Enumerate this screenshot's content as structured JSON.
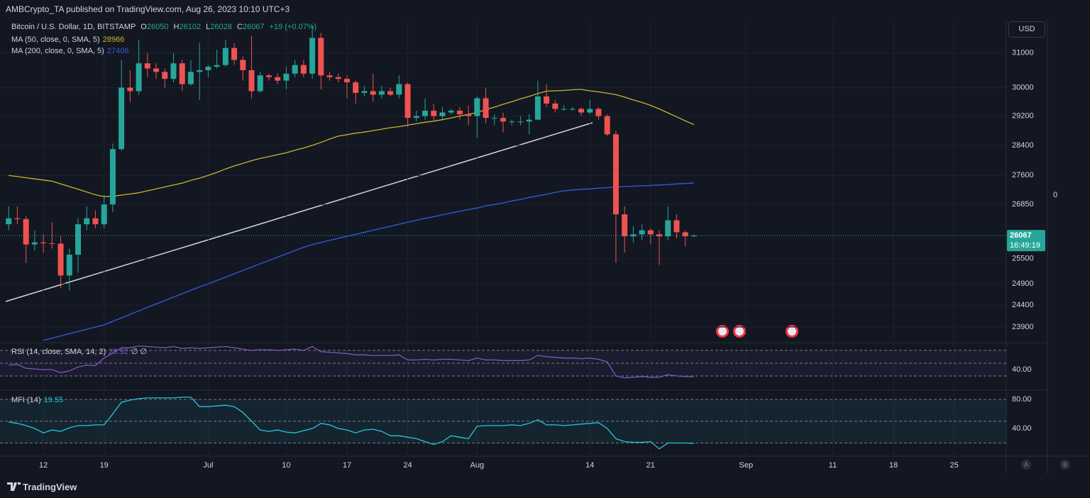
{
  "header": "AMBCrypto_TA published on TradingView.com, Aug 26, 2023 10:10 UTC+3",
  "footer": "TradingView",
  "currency": "USD",
  "scale_buttons": [
    "A",
    "B"
  ],
  "right_label": "0",
  "chart_data": [
    {
      "type": "candlestick",
      "title": "Bitcoin / U.S. Dollar, 1D, BITSTAMP",
      "ohlc_prefixes": [
        "O",
        "H",
        "L",
        "C"
      ],
      "change": "+19 (+0.07%)",
      "countdown": "16:49:19",
      "x": [
        "2023-06-08",
        "2023-06-09",
        "2023-06-10",
        "2023-06-11",
        "2023-06-12",
        "2023-06-13",
        "2023-06-14",
        "2023-06-15",
        "2023-06-16",
        "2023-06-17",
        "2023-06-18",
        "2023-06-19",
        "2023-06-20",
        "2023-06-21",
        "2023-06-22",
        "2023-06-23",
        "2023-06-24",
        "2023-06-25",
        "2023-06-26",
        "2023-06-27",
        "2023-06-28",
        "2023-06-29",
        "2023-06-30",
        "2023-07-01",
        "2023-07-02",
        "2023-07-03",
        "2023-07-04",
        "2023-07-05",
        "2023-07-06",
        "2023-07-07",
        "2023-07-08",
        "2023-07-09",
        "2023-07-10",
        "2023-07-11",
        "2023-07-12",
        "2023-07-13",
        "2023-07-14",
        "2023-07-15",
        "2023-07-16",
        "2023-07-17",
        "2023-07-18",
        "2023-07-19",
        "2023-07-20",
        "2023-07-21",
        "2023-07-22",
        "2023-07-23",
        "2023-07-24",
        "2023-07-25",
        "2023-07-26",
        "2023-07-27",
        "2023-07-28",
        "2023-07-29",
        "2023-07-30",
        "2023-07-31",
        "2023-08-01",
        "2023-08-02",
        "2023-08-03",
        "2023-08-04",
        "2023-08-05",
        "2023-08-06",
        "2023-08-07",
        "2023-08-08",
        "2023-08-09",
        "2023-08-10",
        "2023-08-11",
        "2023-08-12",
        "2023-08-13",
        "2023-08-14",
        "2023-08-15",
        "2023-08-16",
        "2023-08-17",
        "2023-08-18",
        "2023-08-19",
        "2023-08-20",
        "2023-08-21",
        "2023-08-22",
        "2023-08-23",
        "2023-08-24",
        "2023-08-25",
        "2023-08-26"
      ],
      "open": [
        26350,
        26500,
        26480,
        25850,
        25900,
        25880,
        25870,
        25100,
        25600,
        26350,
        26500,
        26350,
        26850,
        28300,
        30000,
        29900,
        30700,
        30550,
        30450,
        30250,
        30700,
        30100,
        30450,
        30500,
        30600,
        30650,
        31150,
        30800,
        30500,
        29900,
        30350,
        30300,
        30200,
        30400,
        30650,
        30400,
        31450,
        30350,
        30300,
        30250,
        30150,
        29850,
        29900,
        29800,
        29900,
        29800,
        30100,
        29150,
        29200,
        29350,
        29200,
        29300,
        29350,
        29250,
        29200,
        29700,
        29150,
        29150,
        29050,
        29050,
        29050,
        29100,
        29750,
        29550,
        29400,
        29400,
        29400,
        29300,
        29400,
        29200,
        28700,
        26600,
        26050,
        26100,
        26200,
        26100,
        26050,
        26450,
        26150,
        26050
      ],
      "high": [
        26800,
        26800,
        26550,
        26200,
        26100,
        26400,
        26050,
        25750,
        26500,
        26800,
        26700,
        27100,
        28450,
        30800,
        30500,
        31400,
        31000,
        30700,
        30550,
        31000,
        30800,
        30800,
        31300,
        30650,
        31100,
        31400,
        31300,
        30900,
        31500,
        30450,
        30400,
        30400,
        30600,
        30800,
        30800,
        31800,
        31600,
        30450,
        30400,
        30350,
        30200,
        30050,
        30400,
        30050,
        30000,
        30350,
        30150,
        29350,
        29700,
        29550,
        29450,
        29400,
        29450,
        29500,
        29750,
        30000,
        29250,
        29300,
        29100,
        29200,
        29250,
        30200,
        30100,
        29650,
        29500,
        29450,
        29450,
        29650,
        29450,
        29250,
        28800,
        26800,
        26300,
        26350,
        26250,
        26200,
        26800,
        26600,
        26200,
        26102
      ],
      "low": [
        26200,
        26350,
        25400,
        25700,
        25650,
        25750,
        24800,
        24750,
        25170,
        26200,
        26250,
        26250,
        26650,
        28250,
        29600,
        29800,
        30300,
        30250,
        30000,
        30150,
        29900,
        30050,
        29650,
        30300,
        30550,
        30600,
        30650,
        30200,
        29700,
        29850,
        30200,
        30100,
        29950,
        30300,
        30300,
        30250,
        29950,
        30200,
        30150,
        29700,
        29550,
        29750,
        29600,
        29700,
        29750,
        29700,
        28900,
        29050,
        29100,
        29050,
        29100,
        29250,
        29100,
        28950,
        28600,
        29000,
        28950,
        28750,
        28950,
        28950,
        28700,
        29100,
        29450,
        29300,
        29350,
        29350,
        29200,
        29250,
        29100,
        28650,
        25400,
        25650,
        25900,
        25950,
        25850,
        25350,
        25950,
        26000,
        25800,
        26028
      ],
      "close": [
        26500,
        26480,
        25850,
        25900,
        25880,
        25870,
        25100,
        25600,
        26350,
        26500,
        26350,
        26850,
        28300,
        30000,
        29900,
        30700,
        30550,
        30450,
        30250,
        30700,
        30100,
        30450,
        30500,
        30600,
        30650,
        31150,
        30800,
        30500,
        29900,
        30350,
        30300,
        30200,
        30400,
        30650,
        30400,
        31450,
        30350,
        30300,
        30250,
        30150,
        29850,
        29900,
        29800,
        29900,
        29800,
        30100,
        29150,
        29200,
        29350,
        29200,
        29300,
        29350,
        29250,
        29200,
        29700,
        29150,
        29150,
        29050,
        29050,
        29050,
        29100,
        29750,
        29550,
        29400,
        29400,
        29400,
        29300,
        29400,
        29200,
        28700,
        26600,
        26050,
        26100,
        26200,
        26100,
        26050,
        26450,
        26150,
        26050,
        26067
      ],
      "up_color": "#26a69a",
      "down_color": "#ef5350",
      "series": [
        {
          "name": "MA (50, close, 0, SMA, 5)",
          "color": "#c9b52c",
          "values": [
            27600,
            27570,
            27540,
            27510,
            27480,
            27450,
            27380,
            27310,
            27240,
            27170,
            27100,
            27050,
            27060,
            27090,
            27120,
            27150,
            27200,
            27250,
            27300,
            27350,
            27400,
            27470,
            27530,
            27600,
            27680,
            27770,
            27850,
            27920,
            27990,
            28050,
            28100,
            28150,
            28200,
            28270,
            28330,
            28400,
            28480,
            28570,
            28650,
            28690,
            28730,
            28760,
            28800,
            28840,
            28880,
            28910,
            28950,
            28990,
            29030,
            29060,
            29100,
            29150,
            29200,
            29250,
            29300,
            29380,
            29450,
            29530,
            29600,
            29680,
            29750,
            29830,
            29900,
            29910,
            29920,
            29940,
            29950,
            29910,
            29880,
            29840,
            29800,
            29730,
            29650,
            29580,
            29500,
            29400,
            29290,
            29180,
            29070,
            28966
          ]
        },
        {
          "name": "MA (200, close, 0, SMA, 5)",
          "color": "#2f5fdc",
          "values": [
            null,
            null,
            null,
            null,
            23600,
            23650,
            23700,
            23750,
            23800,
            23850,
            23900,
            23950,
            24030,
            24110,
            24190,
            24270,
            24350,
            24430,
            24510,
            24590,
            24670,
            24750,
            24830,
            24900,
            24980,
            25060,
            25140,
            25220,
            25300,
            25380,
            25460,
            25540,
            25620,
            25700,
            25780,
            25850,
            25900,
            25950,
            26000,
            26050,
            26100,
            26150,
            26200,
            26250,
            26300,
            26350,
            26400,
            26450,
            26500,
            26540,
            26590,
            26630,
            26680,
            26720,
            26760,
            26810,
            26850,
            26890,
            26940,
            26980,
            27030,
            27070,
            27110,
            27160,
            27200,
            27220,
            27240,
            27250,
            27270,
            27280,
            27300,
            27310,
            27320,
            27330,
            27340,
            27350,
            27360,
            27380,
            27390,
            27406
          ]
        }
      ],
      "xlim": [
        "2023-06-07",
        "2023-10-01"
      ],
      "xticks": [
        {
          "value": "2023-06-12",
          "label": "12"
        },
        {
          "value": "2023-06-19",
          "label": "19"
        },
        {
          "value": "2023-07-01",
          "label": "Jul"
        },
        {
          "value": "2023-07-10",
          "label": "10"
        },
        {
          "value": "2023-07-17",
          "label": "17"
        },
        {
          "value": "2023-07-24",
          "label": "24"
        },
        {
          "value": "2023-08-01",
          "label": "Aug"
        },
        {
          "value": "2023-08-14",
          "label": "14"
        },
        {
          "value": "2023-08-21",
          "label": "21"
        },
        {
          "value": "2023-09-01",
          "label": "Sep"
        },
        {
          "value": "2023-09-11",
          "label": "11"
        },
        {
          "value": "2023-09-18",
          "label": "18"
        },
        {
          "value": "2023-09-25",
          "label": "25"
        }
      ],
      "ylim": [
        23565,
        31950
      ],
      "yticks": [
        23900,
        24400,
        24900,
        25500,
        26850,
        27600,
        28400,
        29200,
        30000,
        31000
      ],
      "log_scale": true,
      "grid": true
    },
    {
      "type": "line",
      "title": "RSI (14, close, SMA, 14, 2)",
      "extra": "∅ ∅",
      "color": "#7e57c2",
      "values": [
        47,
        48,
        42,
        41,
        40,
        40,
        35,
        38,
        44,
        47,
        46,
        58,
        66,
        74,
        74,
        77,
        76,
        75,
        74,
        76,
        73,
        74,
        73,
        74,
        75,
        76,
        74,
        72,
        70,
        71,
        71,
        70,
        71,
        72,
        70,
        76,
        68,
        67,
        66,
        65,
        63,
        63,
        62,
        62,
        62,
        63,
        55,
        55,
        56,
        55,
        56,
        56,
        55,
        54,
        58,
        55,
        55,
        54,
        54,
        54,
        55,
        62,
        60,
        59,
        58,
        58,
        57,
        58,
        56,
        52,
        30,
        27,
        28,
        29,
        28,
        28,
        32,
        30,
        29,
        28.92
      ],
      "bands": [
        70,
        50,
        30
      ],
      "ylim": [
        10,
        81
      ],
      "yticks": [
        {
          "value": 40,
          "label": "40.00"
        }
      ]
    },
    {
      "type": "line",
      "title": "MFI (14)",
      "color": "#26c6da",
      "values": [
        49,
        47,
        44,
        40,
        34,
        38,
        36,
        41,
        44,
        44,
        45,
        45,
        60,
        76,
        79,
        81,
        82,
        82,
        82,
        82,
        83,
        83,
        70,
        70,
        71,
        72,
        70,
        62,
        50,
        38,
        36,
        38,
        35,
        34,
        37,
        40,
        47,
        45,
        40,
        38,
        34,
        38,
        39,
        36,
        30,
        30,
        28,
        26,
        22,
        18,
        22,
        30,
        28,
        26,
        43,
        44,
        44,
        44,
        45,
        44,
        47,
        52,
        45,
        45,
        44,
        45,
        46,
        47,
        48,
        40,
        26,
        22,
        21,
        21,
        22,
        12,
        20,
        20,
        20,
        19.55
      ],
      "bands": [
        80,
        50,
        20
      ],
      "ylim": [
        4.9,
        90.7
      ],
      "yticks": [
        {
          "value": 80,
          "label": "80.00"
        },
        {
          "value": 40,
          "label": "40.00"
        }
      ]
    }
  ]
}
